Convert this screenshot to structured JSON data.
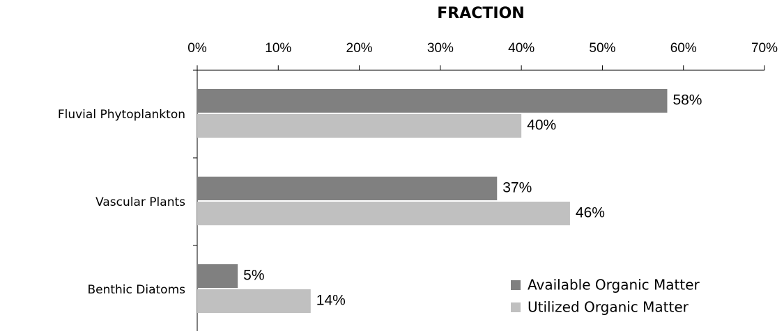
{
  "chart_data": {
    "type": "bar",
    "orientation": "horizontal",
    "title": "FRACTION",
    "categories": [
      "Fluvial Phytoplankton",
      "Vascular Plants",
      "Benthic Diatoms"
    ],
    "series": [
      {
        "name": "Available Organic Matter",
        "color": "#808080",
        "values": [
          58,
          37,
          5
        ],
        "value_labels": [
          "58%",
          "37%",
          "5%"
        ]
      },
      {
        "name": "Utilized Organic Matter",
        "color": "#c0c0c0",
        "values": [
          40,
          46,
          14
        ],
        "value_labels": [
          "40%",
          "46%",
          "14%"
        ]
      }
    ],
    "xlim": [
      0,
      70
    ],
    "xticks": [
      {
        "value": 0,
        "label": "0%"
      },
      {
        "value": 10,
        "label": "10%"
      },
      {
        "value": 20,
        "label": "20%"
      },
      {
        "value": 30,
        "label": "30%"
      },
      {
        "value": 40,
        "label": "40%"
      },
      {
        "value": 50,
        "label": "50%"
      },
      {
        "value": 60,
        "label": "60%"
      },
      {
        "value": 70,
        "label": "70%"
      }
    ],
    "grid": false,
    "legend": "lower right"
  }
}
